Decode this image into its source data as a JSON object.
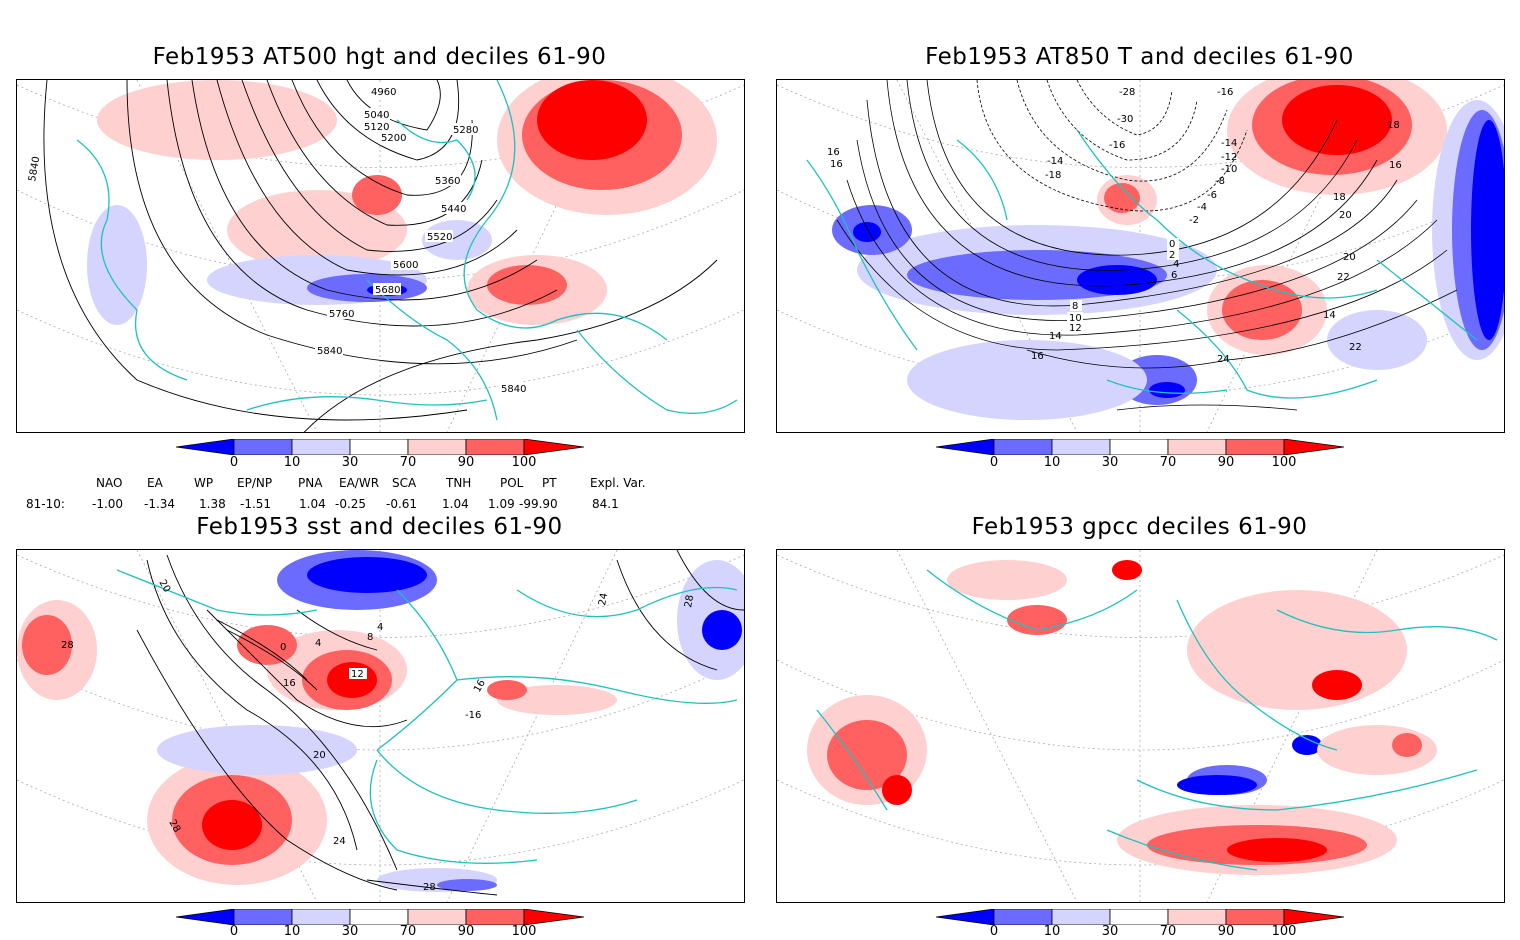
{
  "panels": [
    {
      "title": "Feb1953 AT500 hgt and deciles 61-90",
      "contour_labels": [
        "4960",
        "5040",
        "5120",
        "5200",
        "5280",
        "5360",
        "5440",
        "5520",
        "5600",
        "5680",
        "5760",
        "5840",
        "5840",
        "5840"
      ]
    },
    {
      "title": "Feb1953 AT850 T and deciles 61-90",
      "contour_labels": [
        "-28",
        "-30",
        "-16",
        "-14",
        "-18",
        "-16",
        "-14",
        "-12",
        "-10",
        "-8",
        "-6",
        "-4",
        "-2",
        "0",
        "2",
        "4",
        "6",
        "8",
        "10",
        "12",
        "14",
        "16",
        "16",
        "16",
        "16",
        "18",
        "18",
        "20",
        "20",
        "22",
        "22",
        "24",
        "14"
      ]
    },
    {
      "title": "Feb1953 sst and deciles 61-90",
      "contour_labels": [
        "20",
        "28",
        "0",
        "4",
        "8",
        "4",
        "12",
        "16",
        "16",
        "-16",
        "20",
        "24",
        "28",
        "28",
        "24",
        "28"
      ]
    },
    {
      "title": "Feb1953 gpcc deciles 61-90",
      "contour_labels": []
    }
  ],
  "colorbar": {
    "tick_labels": [
      "0",
      "10",
      "30",
      "70",
      "90",
      "100"
    ],
    "colors": [
      "#0000ff",
      "#6b6bff",
      "#d4d4ff",
      "#ffffff",
      "#ffd0d0",
      "#ff6060",
      "#ff0000"
    ]
  },
  "indices": {
    "headers": [
      "NAO",
      "EA",
      "WP",
      "EP/NP",
      "PNA",
      "EA/WR",
      "SCA",
      "TNH",
      "POL",
      "PT",
      "Expl. Var."
    ],
    "row_label": "81-10:",
    "values": [
      "-1.00",
      "-1.34",
      "1.38",
      "-1.51",
      "1.04",
      "-0.25",
      "-0.61",
      "1.04",
      "1.09",
      "-99.90",
      "84.1"
    ]
  },
  "map_style": {
    "coast_color": "#20c0c0",
    "contour_color": "#000000",
    "grid_color": "#aaaaaa"
  }
}
